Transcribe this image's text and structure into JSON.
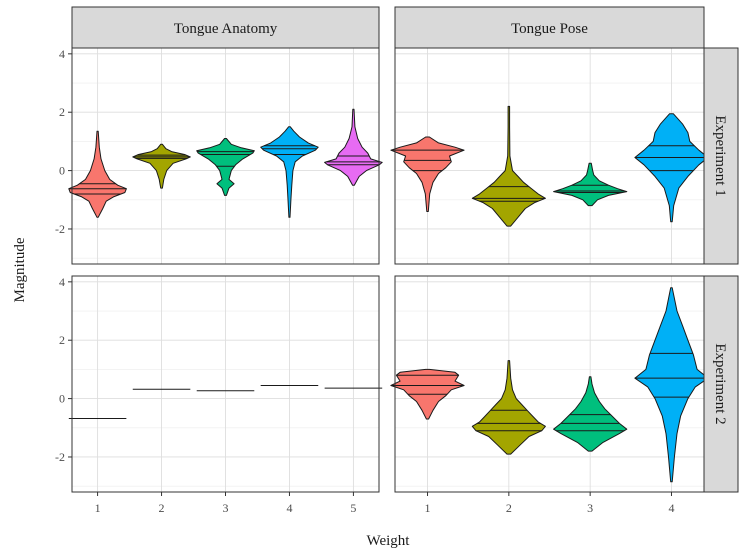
{
  "chart_data": {
    "type": "violin",
    "xlabel": "Weight",
    "ylabel": "Magnitude",
    "ylim": [
      -3.2,
      4.2
    ],
    "yticks": [
      -2,
      0,
      2,
      4
    ],
    "grid": true,
    "legend": "none",
    "colors": [
      "#f8766d",
      "#a3a500",
      "#00bf7d",
      "#00b0f6",
      "#e76bf3"
    ],
    "col_facets": [
      "Tongue Anatomy",
      "Tongue Pose"
    ],
    "row_facets": [
      "Experiment 1",
      "Experiment 2"
    ],
    "panels": [
      {
        "row": 0,
        "col": 0,
        "categories": [
          "1",
          "2",
          "3",
          "4",
          "5"
        ],
        "violins": [
          {
            "weight": "1",
            "min": -1.6,
            "max": 1.35,
            "q1": -0.8,
            "median": -0.62,
            "q3": -0.45,
            "profile": [
              [
                -1.6,
                0.02
              ],
              [
                -1.3,
                0.18
              ],
              [
                -1.05,
                0.3
              ],
              [
                -0.9,
                0.55
              ],
              [
                -0.75,
                0.95
              ],
              [
                -0.62,
                1.0
              ],
              [
                -0.5,
                0.7
              ],
              [
                -0.3,
                0.42
              ],
              [
                0.0,
                0.25
              ],
              [
                0.4,
                0.12
              ],
              [
                0.8,
                0.06
              ],
              [
                1.35,
                0.02
              ]
            ]
          },
          {
            "weight": "2",
            "min": -0.6,
            "max": 0.9,
            "q1": 0.42,
            "median": 0.47,
            "q3": 0.53,
            "profile": [
              [
                -0.6,
                0.03
              ],
              [
                -0.3,
                0.08
              ],
              [
                0.0,
                0.18
              ],
              [
                0.25,
                0.4
              ],
              [
                0.4,
                0.85
              ],
              [
                0.47,
                1.0
              ],
              [
                0.55,
                0.8
              ],
              [
                0.65,
                0.35
              ],
              [
                0.75,
                0.15
              ],
              [
                0.9,
                0.03
              ]
            ]
          },
          {
            "weight": "3",
            "min": -0.85,
            "max": 1.1,
            "q1": 0.15,
            "median": 0.55,
            "q3": 0.65,
            "profile": [
              [
                -0.85,
                0.03
              ],
              [
                -0.6,
                0.12
              ],
              [
                -0.45,
                0.3
              ],
              [
                -0.3,
                0.12
              ],
              [
                0.0,
                0.2
              ],
              [
                0.2,
                0.35
              ],
              [
                0.4,
                0.6
              ],
              [
                0.6,
                0.95
              ],
              [
                0.68,
                1.0
              ],
              [
                0.78,
                0.55
              ],
              [
                0.9,
                0.2
              ],
              [
                1.1,
                0.03
              ]
            ]
          },
          {
            "weight": "4",
            "min": -1.6,
            "max": 1.5,
            "q1": 0.55,
            "median": 0.75,
            "q3": 0.85,
            "profile": [
              [
                -1.6,
                0.02
              ],
              [
                -1.0,
                0.05
              ],
              [
                -0.5,
                0.08
              ],
              [
                0.0,
                0.12
              ],
              [
                0.3,
                0.2
              ],
              [
                0.5,
                0.45
              ],
              [
                0.7,
                0.9
              ],
              [
                0.8,
                1.0
              ],
              [
                0.95,
                0.65
              ],
              [
                1.15,
                0.35
              ],
              [
                1.35,
                0.15
              ],
              [
                1.5,
                0.03
              ]
            ]
          },
          {
            "weight": "5",
            "min": -0.5,
            "max": 2.1,
            "q1": 0.2,
            "median": 0.3,
            "q3": 0.5,
            "profile": [
              [
                -0.5,
                0.03
              ],
              [
                -0.2,
                0.2
              ],
              [
                0.0,
                0.45
              ],
              [
                0.2,
                0.9
              ],
              [
                0.28,
                1.0
              ],
              [
                0.4,
                0.6
              ],
              [
                0.6,
                0.5
              ],
              [
                0.8,
                0.3
              ],
              [
                1.1,
                0.15
              ],
              [
                1.5,
                0.05
              ],
              [
                2.1,
                0.02
              ]
            ]
          }
        ]
      },
      {
        "row": 0,
        "col": 1,
        "categories": [
          "1",
          "2",
          "3",
          "4"
        ],
        "violins": [
          {
            "weight": "1",
            "min": -1.4,
            "max": 1.15,
            "q1": 0.0,
            "median": 0.35,
            "q3": 0.7,
            "profile": [
              [
                -1.4,
                0.02
              ],
              [
                -0.8,
                0.06
              ],
              [
                -0.4,
                0.15
              ],
              [
                -0.1,
                0.3
              ],
              [
                0.1,
                0.5
              ],
              [
                0.3,
                0.65
              ],
              [
                0.5,
                0.6
              ],
              [
                0.7,
                1.0
              ],
              [
                0.8,
                0.75
              ],
              [
                0.95,
                0.3
              ],
              [
                1.15,
                0.05
              ]
            ]
          },
          {
            "weight": "2",
            "min": -1.9,
            "max": 2.2,
            "q1": -1.05,
            "median": -0.95,
            "q3": -0.55,
            "profile": [
              [
                -1.9,
                0.05
              ],
              [
                -1.6,
                0.25
              ],
              [
                -1.3,
                0.45
              ],
              [
                -1.1,
                0.7
              ],
              [
                -0.95,
                1.0
              ],
              [
                -0.8,
                0.8
              ],
              [
                -0.6,
                0.6
              ],
              [
                -0.4,
                0.4
              ],
              [
                -0.2,
                0.25
              ],
              [
                0.0,
                0.1
              ],
              [
                0.5,
                0.03
              ],
              [
                1.5,
                0.02
              ],
              [
                2.2,
                0.02
              ]
            ]
          },
          {
            "weight": "3",
            "min": -1.2,
            "max": 0.25,
            "q1": -0.75,
            "median": -0.7,
            "q3": -0.5,
            "profile": [
              [
                -1.2,
                0.05
              ],
              [
                -1.0,
                0.2
              ],
              [
                -0.85,
                0.5
              ],
              [
                -0.72,
                1.0
              ],
              [
                -0.62,
                0.75
              ],
              [
                -0.5,
                0.5
              ],
              [
                -0.35,
                0.25
              ],
              [
                -0.15,
                0.1
              ],
              [
                0.0,
                0.07
              ],
              [
                0.25,
                0.03
              ]
            ]
          },
          {
            "weight": "4",
            "min": -1.75,
            "max": 1.95,
            "q1": 0.0,
            "median": 0.45,
            "q3": 0.85,
            "profile": [
              [
                -1.75,
                0.02
              ],
              [
                -1.2,
                0.06
              ],
              [
                -0.6,
                0.2
              ],
              [
                -0.2,
                0.45
              ],
              [
                0.2,
                0.75
              ],
              [
                0.45,
                1.0
              ],
              [
                0.7,
                0.75
              ],
              [
                1.0,
                0.5
              ],
              [
                1.3,
                0.45
              ],
              [
                1.6,
                0.3
              ],
              [
                1.95,
                0.05
              ]
            ]
          }
        ]
      },
      {
        "row": 1,
        "col": 0,
        "categories": [
          "1",
          "2",
          "3",
          "4",
          "5"
        ],
        "violins": [
          {
            "weight": "1",
            "constant": -0.68
          },
          {
            "weight": "2",
            "constant": 0.32
          },
          {
            "weight": "3",
            "constant": 0.27
          },
          {
            "weight": "4",
            "constant": 0.45
          },
          {
            "weight": "5",
            "constant": 0.36
          }
        ]
      },
      {
        "row": 1,
        "col": 1,
        "categories": [
          "1",
          "2",
          "3",
          "4"
        ],
        "violins": [
          {
            "weight": "1",
            "min": -0.7,
            "max": 1.0,
            "q1": 0.15,
            "median": 0.45,
            "q3": 0.8,
            "profile": [
              [
                -0.7,
                0.03
              ],
              [
                -0.4,
                0.15
              ],
              [
                -0.1,
                0.3
              ],
              [
                0.1,
                0.5
              ],
              [
                0.3,
                0.65
              ],
              [
                0.45,
                1.0
              ],
              [
                0.6,
                0.75
              ],
              [
                0.8,
                0.85
              ],
              [
                0.9,
                0.75
              ],
              [
                1.0,
                0.05
              ]
            ]
          },
          {
            "weight": "2",
            "min": -1.9,
            "max": 1.3,
            "q1": -1.1,
            "median": -0.85,
            "q3": -0.4,
            "profile": [
              [
                -1.9,
                0.05
              ],
              [
                -1.6,
                0.3
              ],
              [
                -1.3,
                0.55
              ],
              [
                -1.1,
                0.9
              ],
              [
                -0.95,
                1.0
              ],
              [
                -0.8,
                0.8
              ],
              [
                -0.6,
                0.65
              ],
              [
                -0.4,
                0.5
              ],
              [
                -0.2,
                0.35
              ],
              [
                0.0,
                0.2
              ],
              [
                0.3,
                0.1
              ],
              [
                0.7,
                0.05
              ],
              [
                1.3,
                0.02
              ]
            ]
          },
          {
            "weight": "3",
            "min": -1.8,
            "max": 0.75,
            "q1": -1.1,
            "median": -0.85,
            "q3": -0.55,
            "profile": [
              [
                -1.8,
                0.05
              ],
              [
                -1.5,
                0.35
              ],
              [
                -1.2,
                0.8
              ],
              [
                -1.05,
                1.0
              ],
              [
                -0.85,
                0.8
              ],
              [
                -0.6,
                0.6
              ],
              [
                -0.35,
                0.4
              ],
              [
                -0.1,
                0.25
              ],
              [
                0.2,
                0.12
              ],
              [
                0.5,
                0.05
              ],
              [
                0.75,
                0.02
              ]
            ]
          },
          {
            "weight": "4",
            "min": -2.85,
            "max": 3.8,
            "q1": 0.05,
            "median": 0.7,
            "q3": 1.55,
            "profile": [
              [
                -2.85,
                0.02
              ],
              [
                -2.0,
                0.08
              ],
              [
                -1.2,
                0.15
              ],
              [
                -0.6,
                0.25
              ],
              [
                0.0,
                0.45
              ],
              [
                0.4,
                0.65
              ],
              [
                0.7,
                1.0
              ],
              [
                1.0,
                0.7
              ],
              [
                1.5,
                0.6
              ],
              [
                2.0,
                0.45
              ],
              [
                2.5,
                0.3
              ],
              [
                3.0,
                0.15
              ],
              [
                3.8,
                0.02
              ]
            ]
          }
        ]
      }
    ]
  }
}
